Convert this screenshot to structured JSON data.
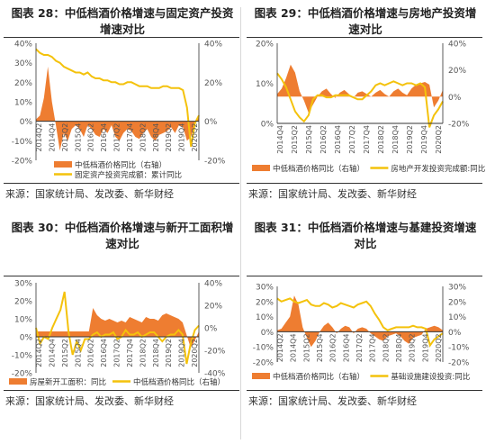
{
  "colors": {
    "bar": "#ee7d31",
    "line": "#f4c20c",
    "axis": "#333333",
    "tick": "#555555",
    "bg": "#ffffff"
  },
  "source_label": "来源：国家统计局、发改委、新华财经",
  "chart_data": [
    {
      "type": "area",
      "title_prefix": "图表 28：",
      "title": "中低档酒价格增速与固定资产投资增速对比",
      "ylim_left": [
        -20,
        40
      ],
      "ylim_right": [
        -20,
        40
      ],
      "yticks_left": [
        "40%",
        "30%",
        "20%",
        "10%",
        "0%",
        "-10%",
        "-20%"
      ],
      "yticks_right": [
        "40%",
        "20%",
        "0%",
        "-20%"
      ],
      "x_tick_labels": [
        "2014Q2",
        "2014Q4",
        "2015Q2",
        "2015Q4",
        "2016Q2",
        "2016Q4",
        "2017Q2",
        "2017Q4",
        "2018Q2",
        "2018Q4",
        "2019Q2",
        "2019Q4",
        "2020Q2"
      ],
      "series": [
        {
          "name": "中低档酒价格同比（右轴）",
          "kind": "area",
          "axis": "right",
          "values": [
            1,
            3,
            12,
            28,
            10,
            -2,
            -15,
            -6,
            -10,
            -4,
            -2,
            -4,
            -8,
            -2,
            -4,
            -7,
            -8,
            -4,
            -6,
            -2,
            -8,
            -10,
            -6,
            -4,
            -5,
            -8,
            -9,
            -6,
            -4,
            -8,
            -10,
            -7,
            -6,
            -5,
            -3,
            -6,
            -2,
            -3,
            -10,
            -8,
            -1,
            3
          ]
        },
        {
          "name": "固定资产投资完成额：累计同比",
          "kind": "line",
          "axis": "left",
          "values": [
            37,
            35,
            34,
            34,
            33,
            31,
            30,
            28,
            27,
            26,
            25,
            25,
            24,
            25,
            23,
            22,
            22,
            21,
            21,
            20,
            20,
            19,
            19,
            20,
            20,
            19,
            18,
            18,
            18,
            17,
            17,
            17,
            18,
            18,
            17,
            17,
            17,
            16,
            7,
            -13,
            -1,
            3
          ]
        }
      ]
    },
    {
      "type": "area",
      "title_prefix": "图表 29：",
      "title": "中低档酒价格增速与房地产投资增速对比",
      "ylim_left": [
        0,
        20
      ],
      "ylim_right": [
        -20,
        40
      ],
      "yticks_left": [
        "20%",
        "10%",
        "0%"
      ],
      "yticks_right": [
        "40%",
        "20%",
        "0%",
        "-20%"
      ],
      "x_tick_labels": [
        "2014Q4",
        "2015Q2",
        "2015Q4",
        "2016Q2",
        "2016Q4",
        "2017Q2",
        "2017Q4",
        "2018Q2",
        "2018Q4",
        "2019Q2",
        "2019Q4",
        "2020Q2"
      ],
      "series": [
        {
          "name": "中低档酒价格同比（右轴）",
          "kind": "area",
          "axis": "right",
          "values": [
            2,
            6,
            14,
            24,
            18,
            4,
            -3,
            -12,
            -6,
            0,
            4,
            6,
            2,
            -1,
            3,
            5,
            2,
            -1,
            3,
            4,
            2,
            0,
            3,
            5,
            2,
            0,
            4,
            6,
            3,
            1,
            6,
            9,
            10,
            11,
            9,
            -8,
            -3,
            5
          ]
        },
        {
          "name": "房地产开发投资完成额:同比",
          "kind": "line",
          "axis": "left",
          "values": [
            12.5,
            11,
            9,
            6,
            3,
            1.5,
            0.5,
            2,
            6,
            7,
            7,
            6.5,
            6.5,
            7,
            7,
            7,
            7,
            6.5,
            6,
            6,
            7,
            8,
            9.5,
            10,
            9.5,
            10,
            10.5,
            10,
            9.5,
            10,
            10,
            9.5,
            10,
            9,
            -1,
            2,
            3.5,
            5.5
          ]
        }
      ]
    },
    {
      "type": "area",
      "title_prefix": "图表 30：",
      "title": "中低档酒价格增速与新开工面积增速对比",
      "ylim_left": [
        -20,
        30
      ],
      "ylim_right": [
        -40,
        40
      ],
      "yticks_left": [
        "30%",
        "20%",
        "10%",
        "0%",
        "-10%",
        "-20%"
      ],
      "yticks_right": [
        "40%",
        "20%",
        "0%",
        "-20%",
        "-40%"
      ],
      "x_tick_labels": [
        "2014Q2",
        "2014Q4",
        "2015Q2",
        "2015Q4",
        "2016Q2",
        "2016Q4",
        "2017Q2",
        "2017Q4",
        "2018Q2",
        "2018Q4",
        "2019Q2",
        "2019Q4",
        "2020Q2"
      ],
      "series": [
        {
          "name": "房屋新开工面积：同比",
          "kind": "area",
          "axis": "left",
          "values": [
            3,
            3,
            3,
            3,
            3,
            3,
            3,
            3,
            3,
            3,
            3,
            3,
            3,
            3,
            16,
            12,
            10,
            9,
            10,
            9,
            8,
            9,
            8,
            11,
            10,
            9,
            8,
            11,
            10,
            10,
            9,
            12,
            13,
            12,
            11,
            10,
            8,
            1,
            -6,
            -2,
            3
          ]
        },
        {
          "name": "中低档酒价格同比（右轴）",
          "kind": "line",
          "axis": "right",
          "values": [
            0,
            -14,
            -8,
            -10,
            0,
            8,
            16,
            32,
            -4,
            -24,
            -12,
            -20,
            -10,
            -10,
            -6,
            -4,
            -8,
            -6,
            -6,
            -4,
            -10,
            -8,
            -2,
            -6,
            -6,
            -4,
            -8,
            -6,
            -4,
            -4,
            -8,
            -12,
            -8,
            -6,
            -6,
            -2,
            -6,
            -32,
            -14,
            -2,
            2
          ]
        }
      ]
    },
    {
      "type": "area",
      "title_prefix": "图表 31：",
      "title": "中低档酒价格增速与基建投资增速对比",
      "ylim_left": [
        -20,
        30
      ],
      "ylim_right": [
        -20,
        30
      ],
      "yticks_left": [
        "30%",
        "20%",
        "10%",
        "0%",
        "-10%",
        "-20%"
      ],
      "yticks_right": [
        "30%",
        "20%",
        "10%",
        "0%",
        "-10%",
        "-20%"
      ],
      "x_tick_labels": [
        "2014Q2",
        "2014Q4",
        "2015Q2",
        "2015Q4",
        "2016Q2",
        "2016Q4",
        "2017Q2",
        "2017Q4",
        "2018Q2",
        "2018Q4",
        "2019Q2",
        "2019Q4",
        "2020Q2"
      ],
      "series": [
        {
          "name": "中低档酒价格同比（右轴）",
          "kind": "area",
          "axis": "right",
          "values": [
            1,
            2,
            6,
            10,
            24,
            18,
            3,
            -4,
            -10,
            -6,
            0,
            4,
            6,
            3,
            -1,
            2,
            4,
            3,
            -1,
            2,
            3,
            2,
            -1,
            -3,
            -5,
            -6,
            -3,
            -2,
            -1,
            -3,
            -6,
            -8,
            -4,
            -3,
            -2,
            2,
            3,
            4,
            3,
            1
          ]
        },
        {
          "name": "基础设施建设投资:同比",
          "kind": "line",
          "axis": "left",
          "values": [
            22,
            20,
            21,
            22,
            20,
            19,
            20,
            21,
            18,
            17,
            17,
            19,
            18,
            16,
            17,
            19,
            18,
            17,
            16,
            18,
            19,
            20,
            17,
            12,
            8,
            3,
            1,
            2,
            3,
            3,
            3,
            3,
            4,
            3,
            3,
            2,
            -9,
            -5,
            -3,
            -1
          ]
        }
      ]
    }
  ]
}
